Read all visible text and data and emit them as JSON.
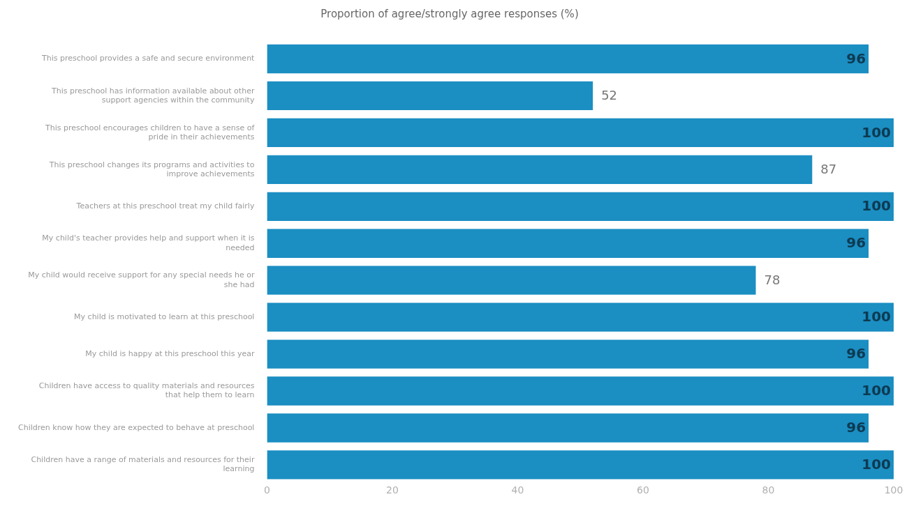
{
  "chart_data": {
    "type": "bar",
    "orientation": "horizontal",
    "title": "Proportion of agree/strongly agree responses (%)",
    "categories": [
      "This preschool provides a safe and secure environment",
      "This preschool has information available about other support agencies within the community",
      "This preschool encourages children to have a sense of pride in their achievements",
      "This preschool changes its programs and activities to improve achievements",
      "Teachers at this preschool treat my child fairly",
      "My child's teacher provides help and support when it is needed",
      "My child would receive support for any special needs he or she had",
      "My child is motivated to learn at this preschool",
      "My child is happy at this preschool this year",
      "Children have access to quality materials and resources that help them to learn",
      "Children know how they are expected to behave at preschool",
      "Children have a range of materials and resources for their learning"
    ],
    "values": [
      96,
      52,
      100,
      87,
      100,
      96,
      78,
      100,
      96,
      100,
      96,
      100
    ],
    "color": "#1b8ec2",
    "xlim": [
      0,
      100
    ],
    "xticks": [
      0,
      20,
      40,
      60,
      80,
      100
    ],
    "grid": false,
    "legend": false,
    "data_labels": true
  }
}
